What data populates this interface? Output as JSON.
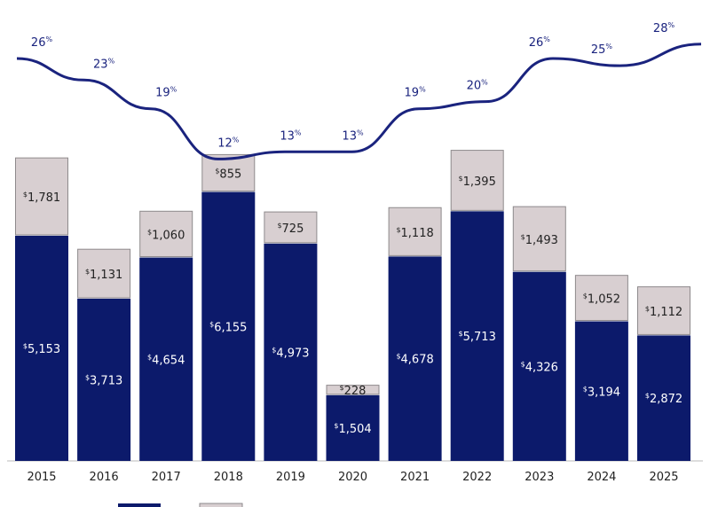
{
  "chart_data": {
    "type": "bar",
    "stacked": true,
    "categories": [
      "2015",
      "2016",
      "2017",
      "2018",
      "2019",
      "2020",
      "2021",
      "2022",
      "2023",
      "2024",
      "2025"
    ],
    "series": [
      {
        "values": [
          5153,
          3713,
          4654,
          6155,
          4973,
          1504,
          4678,
          5713,
          4326,
          3194,
          2872
        ],
        "color": "#0c1a6b"
      },
      {
        "values": [
          1781,
          1131,
          1060,
          855,
          725,
          228,
          1118,
          1395,
          1493,
          1052,
          1112
        ],
        "color": "#d8cfd1"
      }
    ],
    "line_series": {
      "values": [
        26,
        23,
        19,
        12,
        13,
        13,
        19,
        20,
        26,
        25,
        28
      ],
      "color": "#1a237e",
      "unit": "%"
    },
    "value_prefix": "$",
    "grid": false,
    "legend": "bottom"
  }
}
